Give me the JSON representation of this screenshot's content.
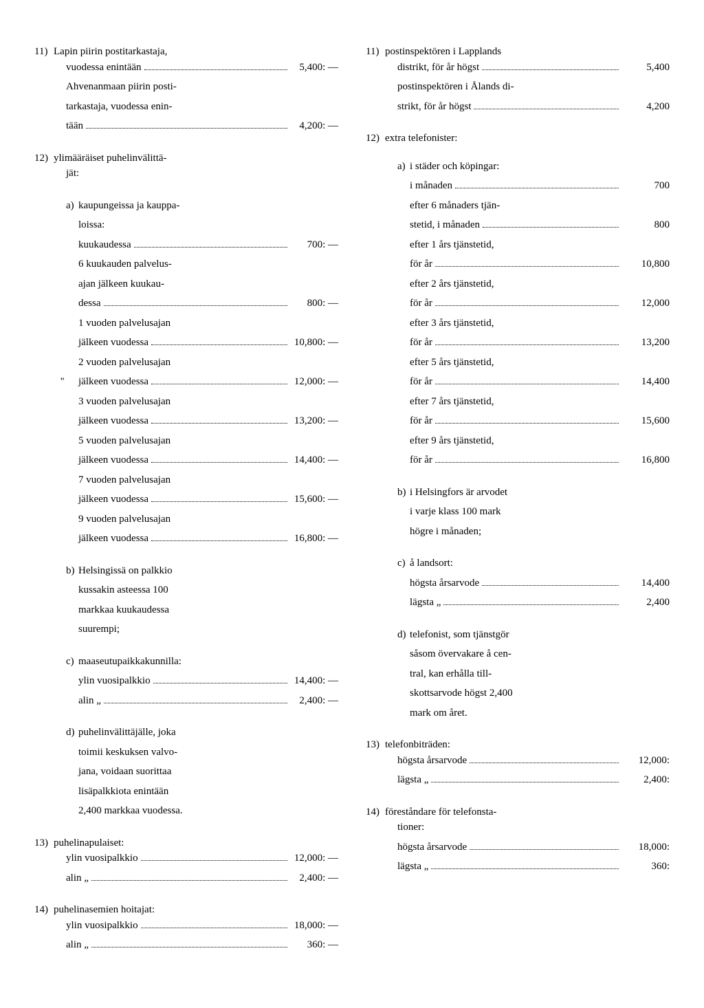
{
  "left": {
    "items": [
      {
        "num": "11)",
        "lines": [
          {
            "t": "Lapin piirin postitarkastaja,",
            "a": ""
          },
          {
            "t": "vuodessa enintään",
            "a": "5,400: —",
            "dots": true
          },
          {
            "t": "Ahvenanmaan piirin posti-",
            "a": ""
          },
          {
            "t": "tarkastaja, vuodessa enin-",
            "a": ""
          },
          {
            "t": "tään",
            "a": "4,200: —",
            "dots": true
          }
        ]
      },
      {
        "num": "12)",
        "lines": [
          {
            "t": "ylimääräiset puhelinvälittä-",
            "a": ""
          },
          {
            "t": "jät:",
            "a": ""
          }
        ],
        "subs": [
          {
            "lbl": "a)",
            "lines": [
              {
                "t": "kaupungeissa ja kauppa-",
                "a": ""
              },
              {
                "t": "loissa:",
                "a": ""
              },
              {
                "t": "kuukaudessa",
                "a": "700: —",
                "dots": true
              },
              {
                "t": "6 kuukauden palvelus-",
                "a": ""
              },
              {
                "t": "ajan jälkeen kuukau-",
                "a": ""
              },
              {
                "t": "dessa",
                "a": "800: —",
                "dots": true
              },
              {
                "t": "1 vuoden palvelusajan",
                "a": ""
              },
              {
                "t": "jälkeen vuodessa",
                "a": "10,800: —",
                "dots": true
              },
              {
                "t": "2 vuoden palvelusajan",
                "a": ""
              },
              {
                "t": "jälkeen vuodessa",
                "a": "12,000: —",
                "dots": true,
                "marker": "''"
              },
              {
                "t": "3 vuoden palvelusajan",
                "a": ""
              },
              {
                "t": "jälkeen vuodessa",
                "a": "13,200: —",
                "dots": true
              },
              {
                "t": "5 vuoden palvelusajan",
                "a": ""
              },
              {
                "t": "jälkeen vuodessa",
                "a": "14,400: —",
                "dots": true
              },
              {
                "t": "7 vuoden palvelusajan",
                "a": ""
              },
              {
                "t": "jälkeen vuodessa",
                "a": "15,600: —",
                "dots": true
              },
              {
                "t": "9 vuoden palvelusajan",
                "a": ""
              },
              {
                "t": "jälkeen vuodessa",
                "a": "16,800: —",
                "dots": true
              }
            ]
          },
          {
            "lbl": "b)",
            "lines": [
              {
                "t": "Helsingissä on palkkio",
                "a": ""
              },
              {
                "t": "kussakin asteessa 100",
                "a": ""
              },
              {
                "t": "markkaa kuukaudessa",
                "a": ""
              },
              {
                "t": "suurempi;",
                "a": ""
              }
            ]
          },
          {
            "lbl": "c)",
            "lines": [
              {
                "t": "maaseutupaikkakunnilla:",
                "a": ""
              },
              {
                "t": "ylin vuosipalkkio",
                "a": "14,400: —",
                "dots": true
              },
              {
                "t": "alin        „",
                "a": "2,400: —",
                "dots": true
              }
            ]
          },
          {
            "lbl": "d)",
            "lines": [
              {
                "t": "puhelinvälittäjälle, joka",
                "a": ""
              },
              {
                "t": "toimii keskuksen valvo-",
                "a": ""
              },
              {
                "t": "jana, voidaan suorittaa",
                "a": ""
              },
              {
                "t": "lisäpalkkiota enintään",
                "a": ""
              },
              {
                "t": "2,400 markkaa vuodessa.",
                "a": ""
              }
            ]
          }
        ]
      },
      {
        "num": "13)",
        "lines": [
          {
            "t": "puhelinapulaiset:",
            "a": ""
          },
          {
            "t": "ylin vuosipalkkio",
            "a": "12,000: —",
            "dots": true
          },
          {
            "t": "alin        „",
            "a": "2,400: —",
            "dots": true
          }
        ]
      },
      {
        "num": "14)",
        "lines": [
          {
            "t": "puhelinasemien hoitajat:",
            "a": ""
          },
          {
            "t": "ylin vuosipalkkio",
            "a": "18,000: —",
            "dots": true
          },
          {
            "t": "alin        „",
            "a": "360: —",
            "dots": true
          }
        ]
      }
    ]
  },
  "right": {
    "items": [
      {
        "num": "11)",
        "lines": [
          {
            "t": "postinspektören i Lapplands",
            "a": ""
          },
          {
            "t": "distrikt, för år högst",
            "a": "5,400",
            "dots": true
          },
          {
            "t": "postinspektören i Ålands di-",
            "a": ""
          },
          {
            "t": "strikt, för år högst",
            "a": "4,200",
            "dots": true
          }
        ]
      },
      {
        "num": "12)",
        "lines": [
          {
            "t": "extra telefonister:",
            "a": ""
          }
        ],
        "subs": [
          {
            "lbl": "a)",
            "lines": [
              {
                "t": "i städer och köpingar:",
                "a": ""
              },
              {
                "t": "i månaden",
                "a": "700",
                "dots": true
              },
              {
                "t": "efter 6 månaders tjän-",
                "a": ""
              },
              {
                "t": "stetid, i månaden",
                "a": "800",
                "dots": true
              },
              {
                "t": "efter 1 års tjänstetid,",
                "a": ""
              },
              {
                "t": "för år",
                "a": "10,800",
                "dots": true
              },
              {
                "t": "efter 2 års tjänstetid,",
                "a": ""
              },
              {
                "t": "för år",
                "a": "12,000",
                "dots": true
              },
              {
                "t": "efter 3 års tjänstetid,",
                "a": ""
              },
              {
                "t": "för år",
                "a": "13,200",
                "dots": true
              },
              {
                "t": "efter 5 års tjänstetid,",
                "a": ""
              },
              {
                "t": "för år",
                "a": "14,400",
                "dots": true
              },
              {
                "t": "efter 7 års tjänstetid,",
                "a": ""
              },
              {
                "t": "för år",
                "a": "15,600",
                "dots": true
              },
              {
                "t": "efter 9 års tjänstetid,",
                "a": ""
              },
              {
                "t": "för år",
                "a": "16,800",
                "dots": true
              }
            ]
          },
          {
            "lbl": "b)",
            "lines": [
              {
                "t": "i Helsingfors är arvodet",
                "a": ""
              },
              {
                "t": "i varje klass 100 mark",
                "a": ""
              },
              {
                "t": "högre i månaden;",
                "a": ""
              }
            ]
          },
          {
            "lbl": "c)",
            "lines": [
              {
                "t": "å landsort:",
                "a": ""
              },
              {
                "t": "högsta årsarvode",
                "a": "14,400",
                "dots": true
              },
              {
                "t": "lägsta        „",
                "a": "2,400",
                "dots": true
              }
            ]
          },
          {
            "lbl": "d)",
            "lines": [
              {
                "t": "telefonist, som tjänstgör",
                "a": ""
              },
              {
                "t": "såsom övervakare å cen-",
                "a": ""
              },
              {
                "t": "tral, kan erhålla till-",
                "a": ""
              },
              {
                "t": "skottsarvode högst 2,400",
                "a": ""
              },
              {
                "t": "mark om året.",
                "a": ""
              }
            ]
          }
        ]
      },
      {
        "num": "13)",
        "lines": [
          {
            "t": "telefonbiträden:",
            "a": ""
          },
          {
            "t": "högsta årsarvode",
            "a": "12,000:",
            "dots": true
          },
          {
            "t": "lägsta        „",
            "a": "2,400:",
            "dots": true
          }
        ]
      },
      {
        "num": "14)",
        "lines": [
          {
            "t": "föreståndare för telefonsta-",
            "a": ""
          },
          {
            "t": "tioner:",
            "a": ""
          },
          {
            "t": "högsta årsarvode",
            "a": "18,000:",
            "dots": true
          },
          {
            "t": "lägsta        „",
            "a": "360:",
            "dots": true
          }
        ]
      }
    ]
  }
}
